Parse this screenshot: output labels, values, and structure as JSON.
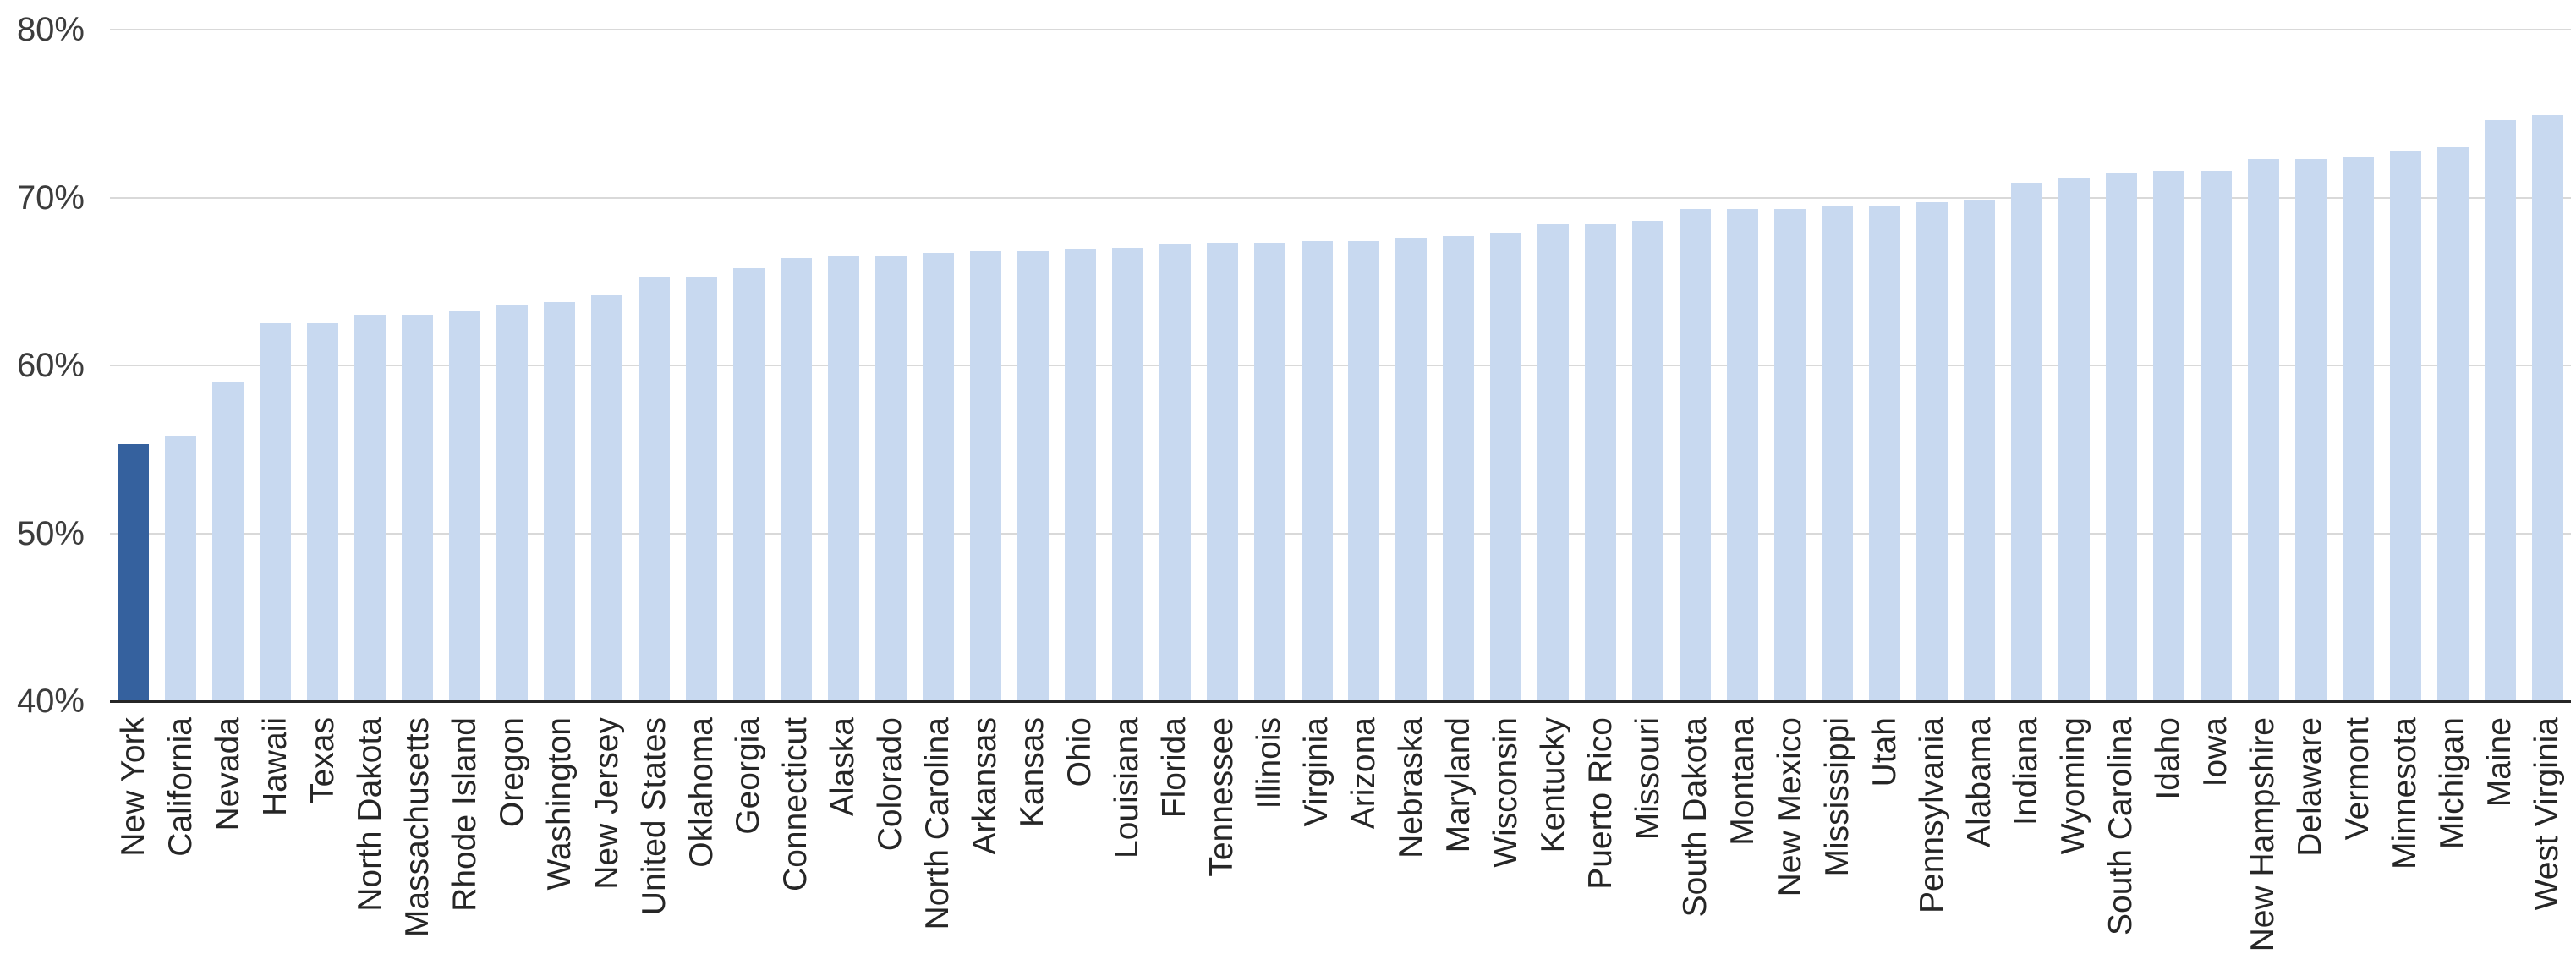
{
  "chart_data": {
    "type": "bar",
    "title": "",
    "xlabel": "",
    "ylabel": "",
    "unit": "%",
    "ylim": [
      40,
      80
    ],
    "yticks": [
      40,
      50,
      60,
      70,
      80
    ],
    "ytick_labels": [
      "40%",
      "50%",
      "60%",
      "70%",
      "80%"
    ],
    "grid": "horizontal",
    "legend": "none",
    "highlighted_category": "New York",
    "categories": [
      "New York",
      "California",
      "Nevada",
      "Hawaii",
      "Texas",
      "North Dakota",
      "Massachusetts",
      "Rhode Island",
      "Oregon",
      "Washington",
      "New Jersey",
      "United States",
      "Oklahoma",
      "Georgia",
      "Connecticut",
      "Alaska",
      "Colorado",
      "North Carolina",
      "Arkansas",
      "Kansas",
      "Ohio",
      "Louisiana",
      "Florida",
      "Tennessee",
      "Illinois",
      "Virginia",
      "Arizona",
      "Nebraska",
      "Maryland",
      "Wisconsin",
      "Kentucky",
      "Puerto Rico",
      "Missouri",
      "South Dakota",
      "Montana",
      "New Mexico",
      "Mississippi",
      "Utah",
      "Pennsylvania",
      "Alabama",
      "Indiana",
      "Wyoming",
      "South Carolina",
      "Idaho",
      "Iowa",
      "New Hampshire",
      "Delaware",
      "Vermont",
      "Minnesota",
      "Michigan",
      "Maine",
      "West Virginia"
    ],
    "values": [
      55.3,
      55.8,
      59.0,
      62.5,
      62.5,
      63.0,
      63.0,
      63.2,
      63.6,
      63.8,
      64.2,
      65.3,
      65.3,
      65.8,
      66.4,
      66.5,
      66.5,
      66.7,
      66.8,
      66.8,
      66.9,
      67.0,
      67.2,
      67.3,
      67.3,
      67.4,
      67.4,
      67.6,
      67.7,
      67.9,
      68.4,
      68.4,
      68.6,
      69.3,
      69.3,
      69.3,
      69.5,
      69.5,
      69.7,
      69.8,
      70.9,
      71.2,
      71.5,
      71.6,
      71.6,
      72.3,
      72.3,
      72.4,
      72.8,
      73.0,
      74.6,
      74.9
    ],
    "colors": {
      "bar_default": "#C8D9F0",
      "bar_highlight": "#35619E",
      "gridline": "#D9D9D9",
      "axis_line": "#262626",
      "ytick_label": "#3C3C3C",
      "category_label": "#262626",
      "background": "#FFFFFF"
    }
  }
}
